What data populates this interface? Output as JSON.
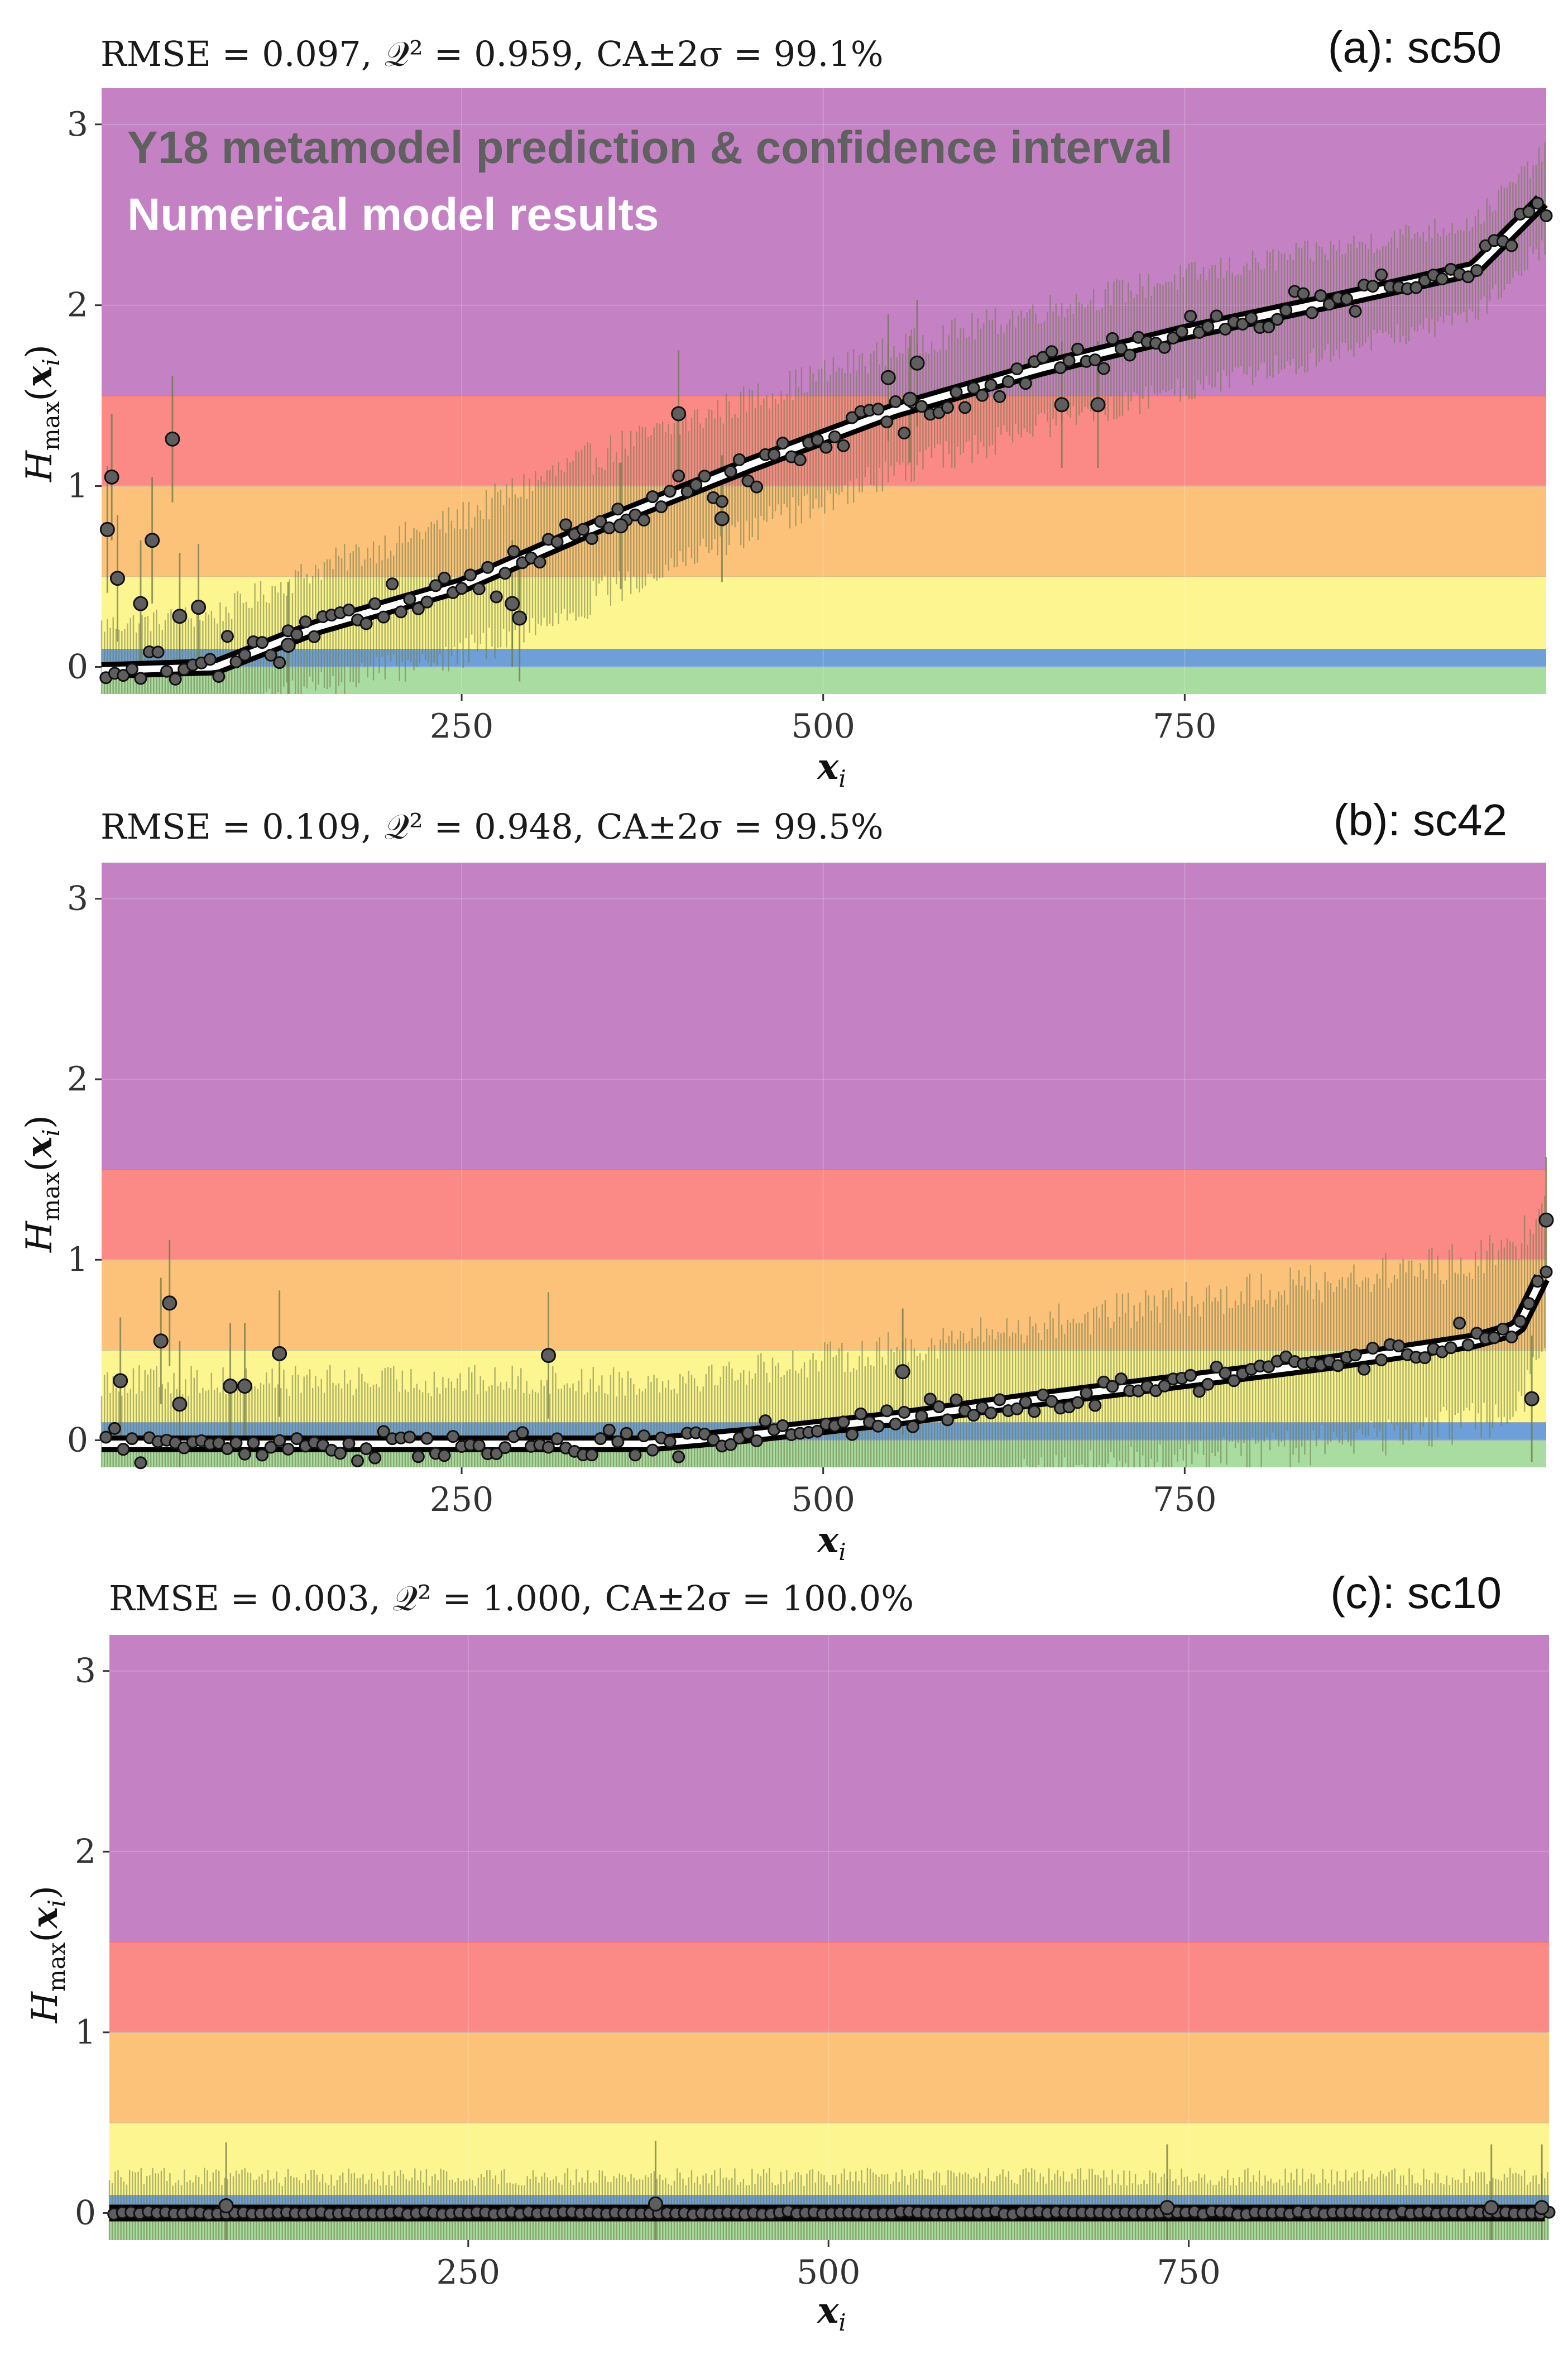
{
  "legend": {
    "metamodel": "Y18 metamodel prediction & confidence interval",
    "numerical": "Numerical model results",
    "metamodel_color": "#606060",
    "numerical_color": "#ffffff"
  },
  "colors": {
    "band_green": "#a8dca0",
    "band_blue": "#6f9fd8",
    "band_yellow": "#fdf58f",
    "band_orange": "#fcc27a",
    "band_red": "#fb8a87",
    "band_purple": "#c481c4",
    "ci_bar": "#6e7a48",
    "prediction_line": "#000000",
    "point_fill": "#5e5e5e",
    "numerical_line": "#ffffff"
  },
  "chart_data": [
    {
      "type": "scatter",
      "panel_label": "(a): sc50",
      "stats": {
        "rmse": "RMSE = 0.097,",
        "q2": "𝒬² = 0.959,",
        "ca": "CA±2σ = 99.1%"
      },
      "xlabel": "x_i",
      "ylabel": "H_max(x_i)",
      "xlim": [
        1,
        1000
      ],
      "ylim": [
        -0.15,
        3.2
      ],
      "xticks": [
        250,
        500,
        750
      ],
      "yticks": [
        0,
        1,
        2,
        3
      ],
      "hazard_bands": [
        {
          "name": "green",
          "from": -0.15,
          "to": 0.0
        },
        {
          "name": "blue",
          "from": 0.0,
          "to": 0.1
        },
        {
          "name": "yellow",
          "from": 0.1,
          "to": 0.5
        },
        {
          "name": "orange",
          "from": 0.5,
          "to": 1.0
        },
        {
          "name": "red",
          "from": 1.0,
          "to": 1.5
        },
        {
          "name": "purple",
          "from": 1.5,
          "to": 3.2
        }
      ],
      "sorted_curve": [
        [
          1,
          -0.02
        ],
        [
          80,
          0.0
        ],
        [
          150,
          0.22
        ],
        [
          250,
          0.45
        ],
        [
          350,
          0.8
        ],
        [
          450,
          1.12
        ],
        [
          550,
          1.42
        ],
        [
          650,
          1.65
        ],
        [
          750,
          1.85
        ],
        [
          850,
          2.02
        ],
        [
          950,
          2.2
        ],
        [
          1000,
          2.6
        ]
      ],
      "ci_halfwidth": [
        [
          1,
          0.25
        ],
        [
          300,
          0.4
        ],
        [
          500,
          0.35
        ],
        [
          800,
          0.3
        ],
        [
          1000,
          0.25
        ]
      ],
      "scatter_sd": 0.07,
      "outliers": [
        [
          5,
          0.76
        ],
        [
          8,
          1.05
        ],
        [
          12,
          0.49
        ],
        [
          28,
          0.35
        ],
        [
          36,
          0.7
        ],
        [
          50,
          1.26
        ],
        [
          55,
          0.28
        ],
        [
          68,
          0.33
        ],
        [
          130,
          0.12
        ],
        [
          285,
          0.35
        ],
        [
          290,
          0.27
        ],
        [
          360,
          0.78
        ],
        [
          400,
          1.4
        ],
        [
          430,
          0.82
        ],
        [
          545,
          1.6
        ],
        [
          560,
          1.48
        ],
        [
          565,
          1.68
        ],
        [
          665,
          1.45
        ],
        [
          690,
          1.45
        ]
      ]
    },
    {
      "type": "scatter",
      "panel_label": "(b): sc42",
      "stats": {
        "rmse": "RMSE = 0.109,",
        "q2": "𝒬² = 0.948,",
        "ca": "CA±2σ = 99.5%"
      },
      "xlabel": "x_i",
      "ylabel": "H_max(x_i)",
      "xlim": [
        1,
        1000
      ],
      "ylim": [
        -0.15,
        3.2
      ],
      "xticks": [
        250,
        500,
        750
      ],
      "yticks": [
        0,
        1,
        2,
        3
      ],
      "hazard_bands": [
        {
          "name": "green",
          "from": -0.15,
          "to": 0.0
        },
        {
          "name": "blue",
          "from": 0.0,
          "to": 0.1
        },
        {
          "name": "yellow",
          "from": 0.1,
          "to": 0.5
        },
        {
          "name": "orange",
          "from": 0.5,
          "to": 1.0
        },
        {
          "name": "red",
          "from": 1.0,
          "to": 1.5
        },
        {
          "name": "purple",
          "from": 1.5,
          "to": 3.2
        }
      ],
      "sorted_curve": [
        [
          1,
          -0.02
        ],
        [
          380,
          -0.02
        ],
        [
          450,
          0.03
        ],
        [
          550,
          0.12
        ],
        [
          650,
          0.23
        ],
        [
          750,
          0.33
        ],
        [
          850,
          0.43
        ],
        [
          950,
          0.55
        ],
        [
          980,
          0.62
        ],
        [
          1000,
          0.95
        ]
      ],
      "ci_halfwidth": [
        [
          1,
          0.35
        ],
        [
          400,
          0.35
        ],
        [
          600,
          0.4
        ],
        [
          800,
          0.45
        ],
        [
          1000,
          0.45
        ]
      ],
      "scatter_sd": 0.05,
      "outliers": [
        [
          14,
          0.33
        ],
        [
          42,
          0.55
        ],
        [
          48,
          0.76
        ],
        [
          55,
          0.2
        ],
        [
          90,
          0.3
        ],
        [
          100,
          0.3
        ],
        [
          124,
          0.48
        ],
        [
          310,
          0.47
        ],
        [
          555,
          0.38
        ],
        [
          990,
          0.23
        ],
        [
          1000,
          1.22
        ]
      ]
    },
    {
      "type": "scatter",
      "panel_label": "(c): sc10",
      "stats": {
        "rmse": "RMSE = 0.003,",
        "q2": "𝒬² = 1.000,",
        "ca": "CA±2σ = 100.0%"
      },
      "xlabel": "x_i",
      "ylabel": "H_max(x_i)",
      "xlim": [
        1,
        1000
      ],
      "ylim": [
        -0.15,
        3.2
      ],
      "xticks": [
        250,
        500,
        750
      ],
      "yticks": [
        0,
        1,
        2,
        3
      ],
      "hazard_bands": [
        {
          "name": "green",
          "from": -0.15,
          "to": 0.0
        },
        {
          "name": "blue",
          "from": 0.0,
          "to": 0.1
        },
        {
          "name": "yellow",
          "from": 0.1,
          "to": 0.5
        },
        {
          "name": "orange",
          "from": 0.5,
          "to": 1.0
        },
        {
          "name": "red",
          "from": 1.0,
          "to": 1.5
        },
        {
          "name": "purple",
          "from": 1.5,
          "to": 3.2
        }
      ],
      "sorted_curve": [
        [
          1,
          0.0
        ],
        [
          1000,
          0.0
        ]
      ],
      "ci_halfwidth": [
        [
          1,
          0.2
        ],
        [
          1000,
          0.2
        ]
      ],
      "scatter_sd": 0.005,
      "outliers": [
        [
          82,
          0.04
        ],
        [
          380,
          0.05
        ],
        [
          735,
          0.03
        ],
        [
          960,
          0.03
        ],
        [
          995,
          0.03
        ]
      ]
    }
  ]
}
